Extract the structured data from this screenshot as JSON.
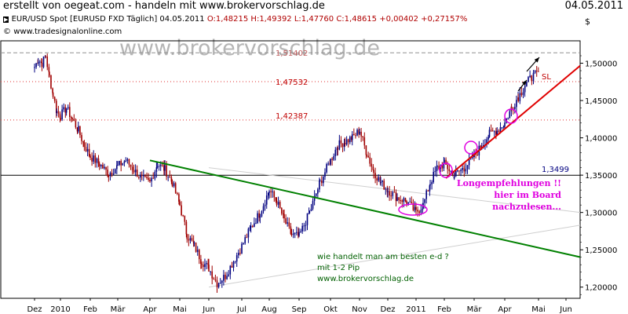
{
  "header": {
    "left_text": "erstellt von oegeat.com - handeln mit www.brokervorschlag.de",
    "date": "04.05.2011"
  },
  "chart_header": {
    "instrument": "EUR/USD Spot [EURUSD FXD  Täglich] 04.05.2011",
    "ohlc_prefix": "  O:1,48215 H:1,49392 L:1,47760 ",
    "close_change": "C:1,48615 +0,00402 +0,27157%",
    "source": "www.tradesignalonline.com",
    "currency_symbol": "$"
  },
  "watermark": "www.brokervorschlag.de",
  "annotations": {
    "stop_loss": "SL",
    "long_recommendation": [
      "Longempfehlungen !!",
      "hier im Board",
      "nachzulesen..."
    ],
    "trade_question": [
      "wie handelt man am besten e-d ?",
      "mit 1-2 Pip",
      "www.brokervorschlag.de"
    ]
  },
  "colors": {
    "price_up": "#000080",
    "price_down": "#a00000",
    "support_line": "#008000",
    "stop_loss_line": "#e00000",
    "level_dotted": "#e03030",
    "highlight_ellipse": "#e000e0",
    "magenta_text": "#e000e0",
    "green_text": "#006000"
  },
  "chart_data": {
    "type": "candlestick",
    "x_ticks": [
      "Dez",
      "2010",
      "Feb",
      "Mär",
      "Apr",
      "Mai",
      "Jun",
      "Jul",
      "Aug",
      "Sep",
      "Okt",
      "Nov",
      "Dez",
      "2011",
      "Feb",
      "Mär",
      "Apr",
      "Mai",
      "Jun"
    ],
    "y_ticks": [
      "1,50000",
      "1,45000",
      "1,40000",
      "1,35000",
      "1,30000",
      "1,25000",
      "1,20000"
    ],
    "ylim": [
      1.185,
      1.53
    ],
    "horizontal_levels": [
      {
        "value": 1.51402,
        "label": "1,51402",
        "style": "dashed-gray"
      },
      {
        "value": 1.47532,
        "label": "1,47532",
        "style": "dotted-red"
      },
      {
        "value": 1.42387,
        "label": "1,42387",
        "style": "dotted-red"
      },
      {
        "value": 1.3499,
        "label": "1,3499",
        "style": "solid-black"
      }
    ],
    "trendlines": [
      {
        "name": "green support",
        "from": {
          "date": "Apr 2010",
          "price": 1.3698
        },
        "to": {
          "date": "Jun 2011",
          "price": 1.2402
        }
      },
      {
        "name": "red SL",
        "from": {
          "date": "Feb 2011",
          "price": 1.3459
        },
        "to": {
          "date": "Jun 2011",
          "price": 1.4966
        }
      },
      {
        "name": "gray channel upper",
        "from": {
          "date": "Jun 2010",
          "price": 1.36
        },
        "to": {
          "date": "Jun 2011",
          "price": 1.3
        }
      },
      {
        "name": "gray channel lower",
        "from": {
          "date": "Jun 2010",
          "price": 1.2
        },
        "to": {
          "date": "Jun 2011",
          "price": 1.283
        }
      }
    ],
    "price_path": [
      [
        "Dez 2009",
        1.495
      ],
      [
        "Dez 2009",
        1.505
      ],
      [
        "Dez 2009",
        1.5
      ],
      [
        "Dez 2009",
        1.51
      ],
      [
        "Dez 2009",
        1.482
      ],
      [
        "Dez 2009",
        1.458
      ],
      [
        "Dez 2009",
        1.435
      ],
      [
        "2010",
        1.43
      ],
      [
        "2010",
        1.44
      ],
      [
        "Jan 2010",
        1.425
      ],
      [
        "Jan 2010",
        1.41
      ],
      [
        "Jan 2010",
        1.39
      ],
      [
        "Feb 2010",
        1.375
      ],
      [
        "Feb 2010",
        1.365
      ],
      [
        "Feb 2010",
        1.352
      ],
      [
        "Mär 2010",
        1.362
      ],
      [
        "Mär 2010",
        1.37
      ],
      [
        "Mär 2010",
        1.357
      ],
      [
        "Mär 2010",
        1.345
      ],
      [
        "Apr 2010",
        1.34
      ],
      [
        "Apr 2010",
        1.365
      ],
      [
        "Apr 2010",
        1.358
      ],
      [
        "Apr 2010",
        1.34
      ],
      [
        "Mai 2010",
        1.31
      ],
      [
        "Mai 2010",
        1.27
      ],
      [
        "Mai 2010",
        1.255
      ],
      [
        "Mai 2010",
        1.235
      ],
      [
        "Jun 2010",
        1.225
      ],
      [
        "Jun 2010",
        1.205
      ],
      [
        "Jun 2010",
        1.215
      ],
      [
        "Jun 2010",
        1.235
      ],
      [
        "Jul 2010",
        1.255
      ],
      [
        "Jul 2010",
        1.28
      ],
      [
        "Jul 2010",
        1.3
      ],
      [
        "Aug 2010",
        1.33
      ],
      [
        "Aug 2010",
        1.315
      ],
      [
        "Aug 2010",
        1.29
      ],
      [
        "Aug 2010",
        1.27
      ],
      [
        "Sep 2010",
        1.268
      ],
      [
        "Sep 2010",
        1.3
      ],
      [
        "Sep 2010",
        1.34
      ],
      [
        "Okt 2010",
        1.37
      ],
      [
        "Okt 2010",
        1.39
      ],
      [
        "Okt 2010",
        1.395
      ],
      [
        "Okt 2010",
        1.4
      ],
      [
        "Nov 2010",
        1.41
      ],
      [
        "Nov 2010",
        1.38
      ],
      [
        "Nov 2010",
        1.355
      ],
      [
        "Nov 2010",
        1.34
      ],
      [
        "Dez 2010",
        1.33
      ],
      [
        "Dez 2010",
        1.32
      ],
      [
        "Dez 2010",
        1.315
      ],
      [
        "2011",
        1.3
      ],
      [
        "Jan 2011",
        1.31
      ],
      [
        "Jan 2011",
        1.34
      ],
      [
        "Jan 2011",
        1.36
      ],
      [
        "Feb 2011",
        1.365
      ],
      [
        "Feb 2011",
        1.35
      ],
      [
        "Feb 2011",
        1.36
      ],
      [
        "Mär 2011",
        1.375
      ],
      [
        "Mär 2011",
        1.39
      ],
      [
        "Mär 2011",
        1.405
      ],
      [
        "Mär 2011",
        1.41
      ],
      [
        "Apr 2011",
        1.42
      ],
      [
        "Apr 2011",
        1.44
      ],
      [
        "Apr 2011",
        1.455
      ],
      [
        "Apr 2011",
        1.47
      ],
      [
        "Apr 2011",
        1.482
      ],
      [
        "Mai 2011",
        1.4862
      ]
    ]
  }
}
